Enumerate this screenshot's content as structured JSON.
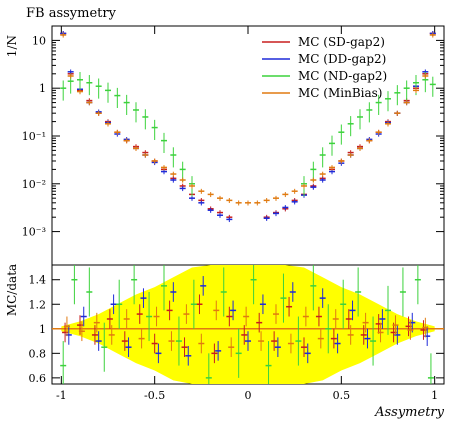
{
  "chart_data": [
    {
      "type": "scatter",
      "title": "FB assymetry",
      "ylabel": "1/N",
      "xlabel": "",
      "yscale": "log",
      "xlim": [
        -1.05,
        1.05
      ],
      "ylim": [
        0.0002,
        20
      ],
      "y_tick_labels": [
        "10⁻³",
        "10⁻²",
        "10⁻¹",
        "1",
        "10"
      ],
      "y_tick_values": [
        0.001,
        0.01,
        0.1,
        1,
        10
      ],
      "legend_placement": "top-right",
      "series": [
        {
          "name": "MC (SD-gap2)",
          "color": "#c81e1e",
          "x": [
            -0.99,
            -0.95,
            -0.9,
            -0.85,
            -0.8,
            -0.75,
            -0.7,
            -0.65,
            -0.6,
            -0.55,
            -0.5,
            -0.45,
            -0.4,
            -0.35,
            -0.3,
            -0.25,
            -0.2,
            -0.15,
            -0.1,
            0.1,
            0.15,
            0.2,
            0.25,
            0.3,
            0.35,
            0.4,
            0.45,
            0.5,
            0.55,
            0.6,
            0.65,
            0.7,
            0.75,
            0.8,
            0.85,
            0.9,
            0.95,
            0.99
          ],
          "y": [
            14,
            2.0,
            0.9,
            0.55,
            0.3,
            0.2,
            0.12,
            0.08,
            0.06,
            0.045,
            0.03,
            0.02,
            0.013,
            0.009,
            0.006,
            0.0045,
            0.003,
            0.0025,
            0.002,
            0.002,
            0.0025,
            0.003,
            0.0045,
            0.006,
            0.009,
            0.013,
            0.02,
            0.03,
            0.045,
            0.06,
            0.08,
            0.12,
            0.2,
            0.3,
            0.55,
            1.0,
            2.0,
            14
          ]
        },
        {
          "name": "MC (DD-gap2)",
          "color": "#1e2ad8",
          "x": [
            -0.99,
            -0.95,
            -0.9,
            -0.85,
            -0.8,
            -0.75,
            -0.7,
            -0.65,
            -0.6,
            -0.55,
            -0.5,
            -0.45,
            -0.4,
            -0.35,
            -0.3,
            -0.25,
            -0.2,
            -0.15,
            -0.1,
            0.1,
            0.15,
            0.2,
            0.25,
            0.3,
            0.35,
            0.4,
            0.45,
            0.5,
            0.55,
            0.6,
            0.65,
            0.7,
            0.75,
            0.8,
            0.85,
            0.9,
            0.95,
            0.99
          ],
          "y": [
            14,
            2.2,
            0.95,
            0.5,
            0.32,
            0.19,
            0.11,
            0.085,
            0.055,
            0.04,
            0.028,
            0.018,
            0.012,
            0.008,
            0.005,
            0.004,
            0.0028,
            0.0022,
            0.0018,
            0.0019,
            0.0024,
            0.0032,
            0.0042,
            0.0058,
            0.0085,
            0.012,
            0.018,
            0.027,
            0.04,
            0.055,
            0.085,
            0.11,
            0.19,
            0.3,
            0.5,
            1.1,
            2.2,
            14
          ]
        },
        {
          "name": "MC (ND-gap2)",
          "color": "#3cd23c",
          "x": [
            -0.99,
            -0.95,
            -0.9,
            -0.85,
            -0.8,
            -0.75,
            -0.7,
            -0.65,
            -0.6,
            -0.55,
            -0.5,
            -0.45,
            -0.4,
            -0.35,
            -0.3,
            0.3,
            0.35,
            0.4,
            0.45,
            0.5,
            0.55,
            0.6,
            0.65,
            0.7,
            0.75,
            0.8,
            0.85,
            0.9,
            0.95,
            0.99
          ],
          "y": [
            1.0,
            1.4,
            1.5,
            1.3,
            1.1,
            0.9,
            0.7,
            0.5,
            0.35,
            0.25,
            0.15,
            0.08,
            0.04,
            0.02,
            0.01,
            0.01,
            0.02,
            0.04,
            0.07,
            0.12,
            0.18,
            0.25,
            0.35,
            0.5,
            0.6,
            0.8,
            1.0,
            1.3,
            1.5,
            1.2
          ]
        },
        {
          "name": "MC (MinBias)",
          "color": "#e07a10",
          "x": [
            -0.99,
            -0.95,
            -0.9,
            -0.85,
            -0.8,
            -0.75,
            -0.7,
            -0.65,
            -0.6,
            -0.55,
            -0.5,
            -0.45,
            -0.4,
            -0.35,
            -0.3,
            -0.25,
            -0.2,
            -0.15,
            -0.1,
            -0.05,
            0.0,
            0.05,
            0.1,
            0.15,
            0.2,
            0.25,
            0.3,
            0.35,
            0.4,
            0.45,
            0.5,
            0.55,
            0.6,
            0.65,
            0.7,
            0.75,
            0.8,
            0.85,
            0.9,
            0.95,
            0.99
          ],
          "y": [
            13,
            1.8,
            0.85,
            0.5,
            0.3,
            0.18,
            0.12,
            0.08,
            0.055,
            0.04,
            0.03,
            0.022,
            0.016,
            0.012,
            0.009,
            0.007,
            0.006,
            0.005,
            0.0045,
            0.004,
            0.004,
            0.004,
            0.0045,
            0.005,
            0.006,
            0.007,
            0.009,
            0.012,
            0.016,
            0.022,
            0.03,
            0.04,
            0.055,
            0.08,
            0.12,
            0.18,
            0.3,
            0.5,
            0.9,
            1.8,
            13
          ]
        }
      ]
    },
    {
      "type": "scatter",
      "title": "",
      "ylabel": "MC/data",
      "xlabel": "Assymetry",
      "xlim": [
        -1.05,
        1.05
      ],
      "ylim": [
        0.55,
        1.52
      ],
      "y_tick_labels": [
        "0.6",
        "0.8",
        "1",
        "1.2",
        "1.4"
      ],
      "y_tick_values": [
        0.6,
        0.8,
        1.0,
        1.2,
        1.4
      ],
      "x_tick_labels": [
        "-1",
        "-0.5",
        "0",
        "0.5",
        "1"
      ],
      "x_tick_values": [
        -1,
        -0.5,
        0,
        0.5,
        1
      ],
      "reference_line": 1.0,
      "band_color": "#ffff00",
      "band": {
        "x": [
          -1.0,
          -0.9,
          -0.8,
          -0.7,
          -0.6,
          -0.5,
          -0.4,
          -0.3,
          -0.2,
          -0.1,
          0.0,
          0.1,
          0.2,
          0.3,
          0.4,
          0.5,
          0.6,
          0.7,
          0.8,
          0.9,
          1.0
        ],
        "half_width": [
          0.02,
          0.06,
          0.12,
          0.2,
          0.28,
          0.34,
          0.42,
          0.5,
          0.55,
          0.6,
          0.62,
          0.6,
          0.55,
          0.5,
          0.42,
          0.34,
          0.28,
          0.2,
          0.12,
          0.06,
          0.02
        ]
      },
      "series": [
        {
          "name": "MC (SD-gap2)",
          "color": "#c81e1e",
          "x": [
            -0.98,
            -0.9,
            -0.82,
            -0.74,
            -0.66,
            -0.58,
            -0.5,
            -0.42,
            -0.34,
            -0.26,
            -0.18,
            -0.1,
            -0.02,
            0.06,
            0.14,
            0.22,
            0.3,
            0.38,
            0.46,
            0.54,
            0.62,
            0.7,
            0.78,
            0.86,
            0.94
          ],
          "y": [
            0.97,
            1.03,
            0.95,
            1.08,
            0.9,
            1.12,
            0.88,
            1.15,
            0.85,
            1.2,
            0.8,
            1.1,
            0.95,
            1.05,
            0.9,
            1.18,
            0.85,
            1.1,
            0.92,
            1.08,
            0.95,
            1.04,
            0.97,
            1.02,
            0.99
          ]
        },
        {
          "name": "MC (DD-gap2)",
          "color": "#1e2ad8",
          "x": [
            -0.96,
            -0.88,
            -0.8,
            -0.72,
            -0.64,
            -0.56,
            -0.48,
            -0.4,
            -0.32,
            -0.24,
            -0.16,
            -0.08,
            0.0,
            0.08,
            0.16,
            0.24,
            0.32,
            0.4,
            0.48,
            0.56,
            0.64,
            0.72,
            0.8,
            0.88,
            0.96
          ],
          "y": [
            0.95,
            1.1,
            0.9,
            1.2,
            0.85,
            1.25,
            0.8,
            1.3,
            0.78,
            1.35,
            0.82,
            1.15,
            0.9,
            1.2,
            0.85,
            1.3,
            0.8,
            1.25,
            0.88,
            1.15,
            0.92,
            1.08,
            0.95,
            1.05,
            0.94
          ]
        },
        {
          "name": "MC (ND-gap2)",
          "color": "#3cd23c",
          "x": [
            -0.99,
            -0.93,
            -0.85,
            -0.77,
            -0.69,
            -0.61,
            -0.53,
            -0.45,
            -0.37,
            -0.29,
            -0.21,
            -0.13,
            -0.05,
            0.03,
            0.11,
            0.19,
            0.27,
            0.35,
            0.43,
            0.51,
            0.59,
            0.67,
            0.75,
            0.83,
            0.91,
            0.98
          ],
          "y": [
            0.7,
            1.4,
            1.3,
            0.85,
            1.2,
            1.4,
            1.1,
            1.35,
            0.9,
            1.2,
            0.6,
            1.3,
            0.8,
            1.4,
            0.7,
            1.25,
            0.9,
            1.35,
            1.0,
            1.2,
            1.3,
            0.9,
            1.15,
            1.3,
            1.4,
            0.6
          ]
        },
        {
          "name": "MC (MinBias)",
          "color": "#e07a10",
          "x": [
            -0.97,
            -0.89,
            -0.81,
            -0.73,
            -0.65,
            -0.57,
            -0.49,
            -0.41,
            -0.33,
            -0.25,
            -0.17,
            -0.09,
            -0.01,
            0.07,
            0.15,
            0.23,
            0.31,
            0.39,
            0.47,
            0.55,
            0.63,
            0.71,
            0.79,
            0.87,
            0.95
          ],
          "y": [
            1.02,
            0.98,
            1.05,
            0.95,
            1.08,
            0.92,
            1.1,
            0.9,
            1.12,
            0.88,
            1.15,
            0.85,
            1.1,
            0.9,
            1.12,
            0.88,
            1.1,
            0.92,
            1.08,
            0.95,
            1.05,
            0.97,
            1.03,
            0.99,
            1.01
          ]
        }
      ]
    }
  ]
}
